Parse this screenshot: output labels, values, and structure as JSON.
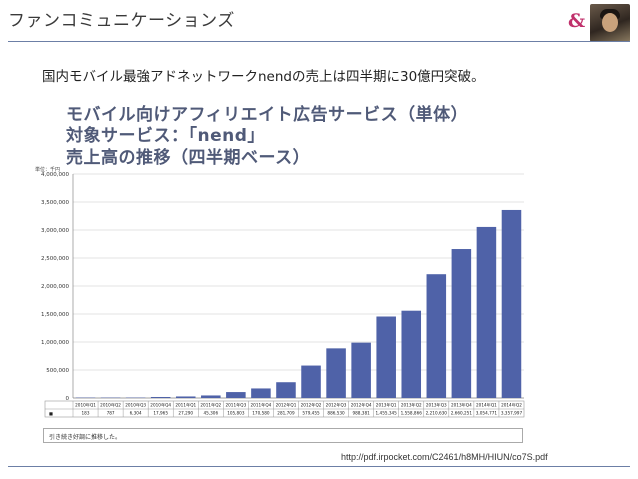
{
  "header": {
    "title": "ファンコミュニケーションズ",
    "logo_symbol": "&"
  },
  "slide": {
    "subtitle": "国内モバイル最強アドネットワークnendの売上は四半期に30億円突破。",
    "chart_title_lines": [
      "モバイル向けアフィリエイト広告サービス（単体）",
      "対象サービス：「nend」",
      "売上高の推移（四半期ベース）"
    ],
    "unit_label": "単位：千円",
    "note": "引き続き好調に推移した。",
    "source_url": "http://pdf.irpocket.com/C2461/h8MH/HIUN/co7S.pdf"
  },
  "chart_data": {
    "type": "bar",
    "title": "売上高の推移（四半期ベース）",
    "ylabel": "単位：千円",
    "ylim": [
      0,
      4000000
    ],
    "yticks": [
      "4,000,000",
      "3,500,000",
      "3,000,000",
      "2,500,000",
      "2,000,000",
      "1,500,000",
      "1,000,000",
      "500,000",
      "0"
    ],
    "legend_marker": "■",
    "categories": [
      "2010年Q1",
      "2010年Q2",
      "2010年Q3",
      "2010年Q4",
      "2011年Q1",
      "2011年Q2",
      "2011年Q3",
      "2011年Q4",
      "2012年Q1",
      "2012年Q2",
      "2012年Q3",
      "2012年Q4",
      "2013年Q1",
      "2013年Q2",
      "2013年Q3",
      "2013年Q4",
      "2014年Q1",
      "2014年Q2"
    ],
    "values": [
      183,
      787,
      6304,
      17965,
      27290,
      45306,
      105803,
      170580,
      281709,
      579455,
      886530,
      988381,
      1455345,
      1558866,
      2210630,
      2660251,
      3054771,
      3357997
    ],
    "value_labels": [
      "183",
      "787",
      "6,304",
      "17,965",
      "27,290",
      "45,306",
      "105,803",
      "170,580",
      "281,709",
      "579,455",
      "886,530",
      "988,381",
      "1,455,345",
      "1,558,866",
      "2,210,630",
      "2,660,251",
      "3,054,771",
      "3,357,997"
    ],
    "bar_color": "#4f62a8",
    "grid": true
  }
}
